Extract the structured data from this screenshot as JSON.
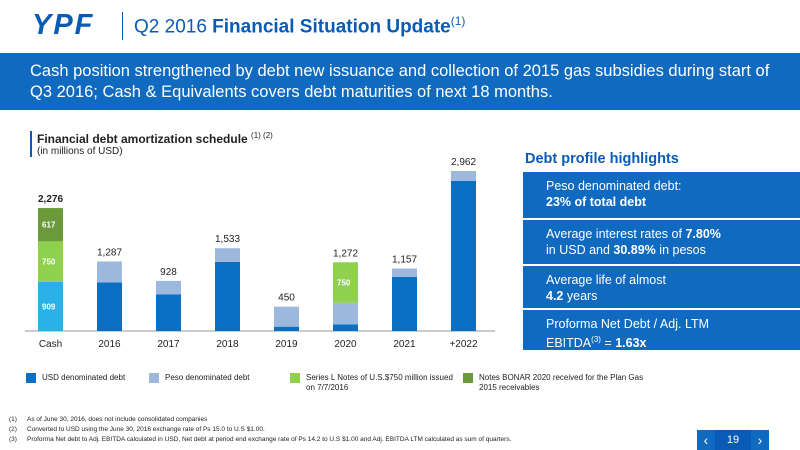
{
  "header": {
    "logo": "YPF",
    "title_prefix": "Q2 2016 ",
    "title_bold": "Financial Situation Update",
    "title_sup": "(1)"
  },
  "banner": {
    "text": "Cash position strengthened by debt new issuance and collection of 2015 gas subsidies during start of Q3 2016; Cash & Equivalents covers debt maturities of next 18 months."
  },
  "chart_header": {
    "title": "Financial debt amortization schedule",
    "title_sup": "(1) (2)",
    "subtitle": "(in millions of USD)"
  },
  "colors": {
    "usd": "#0a6fc2",
    "peso": "#9db8dd",
    "series_l": "#8fd14f",
    "bonar": "#6a9a3a",
    "cash_light": "#2bb0e8"
  },
  "chart_data": {
    "type": "bar",
    "stacked": true,
    "categories": [
      "Cash",
      "2016",
      "2017",
      "2018",
      "2019",
      "2020",
      "2021",
      "+2022"
    ],
    "totals": [
      2276,
      1287,
      928,
      1533,
      450,
      1272,
      1157,
      2962
    ],
    "total_labels": [
      "2,276",
      "1,287",
      "928",
      "1,533",
      "450",
      "1,272",
      "1,157",
      "2,962"
    ],
    "series": [
      {
        "name": "USD denominated debt",
        "values": [
          909,
          900,
          680,
          1280,
          80,
          120,
          1000,
          2780
        ]
      },
      {
        "name": "Peso denominated debt",
        "values": [
          0,
          387,
          248,
          253,
          370,
          402,
          157,
          182
        ]
      },
      {
        "name": "Series L Notes of U.S.$750 million issued on 7/7/2016",
        "values": [
          750,
          0,
          0,
          0,
          0,
          750,
          0,
          0
        ]
      },
      {
        "name": "Notes BONAR 2020 received for the Plan Gas 2015 receivables",
        "values": [
          617,
          0,
          0,
          0,
          0,
          0,
          0,
          0
        ]
      }
    ],
    "segment_labels": {
      "cash_usd": "909",
      "cash_series_l": "750",
      "cash_bonar": "617",
      "y2020_series_l": "750"
    }
  },
  "highlights": {
    "title": "Debt profile highlights",
    "items": [
      {
        "line1": "Peso denominated debt:",
        "line2_bold": "23% of total debt"
      },
      {
        "line1_pre": "Average interest rates of ",
        "line1_bold": "7.80%",
        "line2_pre": "in USD and ",
        "line2_bold": "30.89%",
        "line2_post": " in pesos"
      },
      {
        "line1": "Average life of almost",
        "line2_bold": "4.2",
        "line2_post": " years"
      },
      {
        "line1": "Proforma Net Debt / Adj. LTM",
        "line2_pre": "EBITDA",
        "line2_sup": "(3)",
        "line2_eq": " = ",
        "line2_bold": "1.63x"
      }
    ]
  },
  "legend": {
    "usd": "USD denominated debt",
    "peso": "Peso denominated debt",
    "series_l": "Series L Notes of U.S.$750 million issued on 7/7/2016",
    "bonar": "Notes BONAR 2020 received for the Plan Gas 2015 receivables"
  },
  "footnotes": [
    {
      "n": "(1)",
      "text": "As of June 30, 2016, does not include consolidated companies"
    },
    {
      "n": "(2)",
      "text": "Converted to USD using the June 30, 2016 exchange rate of  Ps 15.0 to U.S $1.00."
    },
    {
      "n": "(3)",
      "text": "Proforma Net debt to Adj. EBITDA calculated in USD, Net debt at period end exchange rate of Ps 14.2 to U.S $1.00 and Adj. EBITDA LTM calculated as sum of quarters."
    }
  ],
  "pager": {
    "prev": "‹",
    "page": "19",
    "next": "›"
  }
}
